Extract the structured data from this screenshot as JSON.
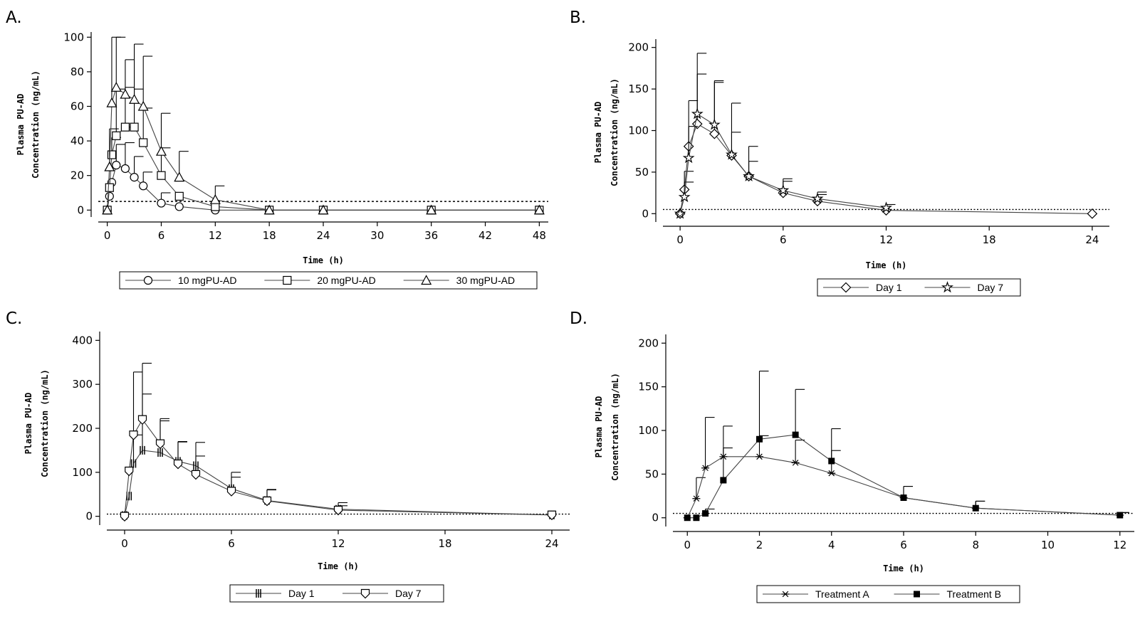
{
  "chart_data": [
    {
      "panel": "A.",
      "type": "line",
      "xlabel": "Time (h)",
      "ylabel_line1": "Plasma PU-AD",
      "ylabel_line2": "Concentration (ng/mL)",
      "xlim": [
        -1,
        49
      ],
      "ylim": [
        -4,
        103
      ],
      "xticks": [
        0,
        6,
        12,
        18,
        24,
        30,
        36,
        42,
        48
      ],
      "yticks": [
        0,
        20,
        40,
        60,
        80,
        100
      ],
      "reference_line": 5,
      "legend_position": "bottom",
      "series": [
        {
          "name": "10 mgPU-AD",
          "marker": "circle",
          "x": [
            0,
            0.25,
            0.5,
            1,
            2,
            3,
            4,
            6,
            8,
            12,
            18,
            24,
            36,
            48
          ],
          "y": [
            0,
            8,
            16,
            26,
            24,
            19,
            14,
            4,
            2,
            0,
            0,
            0,
            0,
            0
          ],
          "err": [
            0,
            0,
            0,
            12,
            15,
            12,
            8,
            6,
            0,
            0,
            0,
            0,
            0,
            0
          ]
        },
        {
          "name": "20 mgPU-AD",
          "marker": "square",
          "x": [
            0,
            0.25,
            0.5,
            1,
            2,
            3,
            4,
            6,
            8,
            12,
            18,
            24,
            36,
            48
          ],
          "y": [
            0,
            13,
            32,
            43,
            48,
            48,
            39,
            20,
            8,
            2,
            0,
            0,
            0,
            0
          ],
          "err": [
            0,
            0,
            10,
            27,
            23,
            22,
            20,
            16,
            0,
            0,
            0,
            0,
            0,
            0
          ]
        },
        {
          "name": "30 mgPU-AD",
          "marker": "triangle",
          "x": [
            0,
            0.25,
            0.5,
            1,
            2,
            3,
            4,
            6,
            8,
            12,
            18,
            24,
            36,
            48
          ],
          "y": [
            0,
            25,
            62,
            71,
            67,
            64,
            60,
            34,
            19,
            6,
            0,
            0,
            0,
            0
          ],
          "err": [
            0,
            22,
            38,
            29,
            20,
            32,
            29,
            22,
            15,
            8,
            0,
            0,
            0,
            0
          ]
        }
      ]
    },
    {
      "panel": "B.",
      "type": "line",
      "xlabel": "Time (h)",
      "ylabel_line1": "Plasma PU-AD",
      "ylabel_line2": "Concentration (ng/mL)",
      "xlim": [
        -1,
        25
      ],
      "ylim": [
        -10,
        210
      ],
      "xticks": [
        0,
        6,
        12,
        18,
        24
      ],
      "yticks": [
        0,
        50,
        100,
        150,
        200
      ],
      "reference_line": 5,
      "legend_position": "bottom",
      "series": [
        {
          "name": "Day 1",
          "marker": "diamond",
          "x": [
            0,
            0.25,
            0.5,
            1,
            2,
            3,
            4,
            6,
            8,
            12,
            24
          ],
          "y": [
            0,
            29,
            81,
            108,
            96,
            70,
            45,
            25,
            15,
            4,
            0
          ],
          "err": [
            0,
            22,
            55,
            60,
            62,
            28,
            18,
            14,
            8,
            0,
            0
          ]
        },
        {
          "name": "Day 7",
          "marker": "star",
          "x": [
            0,
            0.25,
            0.5,
            1,
            2,
            3,
            4,
            6,
            8,
            12
          ],
          "y": [
            0,
            20,
            67,
            120,
            107,
            71,
            45,
            28,
            18,
            7
          ],
          "err": [
            0,
            18,
            38,
            73,
            53,
            62,
            36,
            14,
            8,
            4
          ]
        }
      ]
    },
    {
      "panel": "C.",
      "type": "line",
      "xlabel": "Time (h)",
      "ylabel_line1": "Plasma PU-AD",
      "ylabel_line2": "Concentration (ng/mL)",
      "xlim": [
        -1,
        25
      ],
      "ylim": [
        -20,
        420
      ],
      "xticks": [
        0,
        6,
        12,
        18,
        24
      ],
      "yticks": [
        0,
        100,
        200,
        300,
        400
      ],
      "reference_line": 5,
      "legend_position": "bottom",
      "series": [
        {
          "name": "Day 1",
          "marker": "bar",
          "x": [
            0,
            0.25,
            0.5,
            1,
            2,
            3,
            4,
            6,
            8,
            12,
            24
          ],
          "y": [
            2,
            46,
            120,
            150,
            145,
            125,
            115,
            63,
            36,
            16,
            3
          ],
          "err": [
            0,
            0,
            65,
            128,
            72,
            45,
            53,
            37,
            24,
            15,
            0
          ]
        },
        {
          "name": "Day 7",
          "marker": "shield",
          "x": [
            0,
            0.25,
            0.5,
            1,
            2,
            3,
            4,
            6,
            8,
            12,
            24
          ],
          "y": [
            0,
            103,
            185,
            220,
            165,
            119,
            95,
            57,
            35,
            14,
            3
          ],
          "err": [
            0,
            0,
            143,
            128,
            57,
            50,
            42,
            32,
            26,
            10,
            0
          ]
        }
      ]
    },
    {
      "panel": "D.",
      "type": "line",
      "xlabel": "Time (h)",
      "ylabel_line1": "Plasma PU-AD",
      "ylabel_line2": "Concentration (ng/mL)",
      "xlim": [
        -0.4,
        12.4
      ],
      "ylim": [
        -10,
        210
      ],
      "xticks": [
        0,
        2,
        4,
        6,
        8,
        10,
        12
      ],
      "yticks": [
        0,
        50,
        100,
        150,
        200
      ],
      "reference_line": 5,
      "legend_position": "bottom",
      "series": [
        {
          "name": "Treatment A",
          "marker": "asterisk",
          "x": [
            0,
            0.25,
            0.5,
            1,
            2,
            3,
            4,
            6,
            8,
            12
          ],
          "y": [
            0,
            22,
            57,
            70,
            70,
            63,
            51,
            23,
            11,
            3
          ],
          "err": [
            0,
            24,
            58,
            35,
            24,
            26,
            26,
            13,
            8,
            3
          ]
        },
        {
          "name": "Treatment B",
          "marker": "filled-square",
          "x": [
            0,
            0.25,
            0.5,
            1,
            2,
            3,
            4,
            6,
            8,
            12
          ],
          "y": [
            0,
            0,
            5,
            43,
            90,
            95,
            65,
            23,
            11,
            3
          ],
          "err": [
            0,
            0,
            5,
            37,
            78,
            52,
            37,
            13,
            8,
            3
          ]
        }
      ]
    }
  ]
}
